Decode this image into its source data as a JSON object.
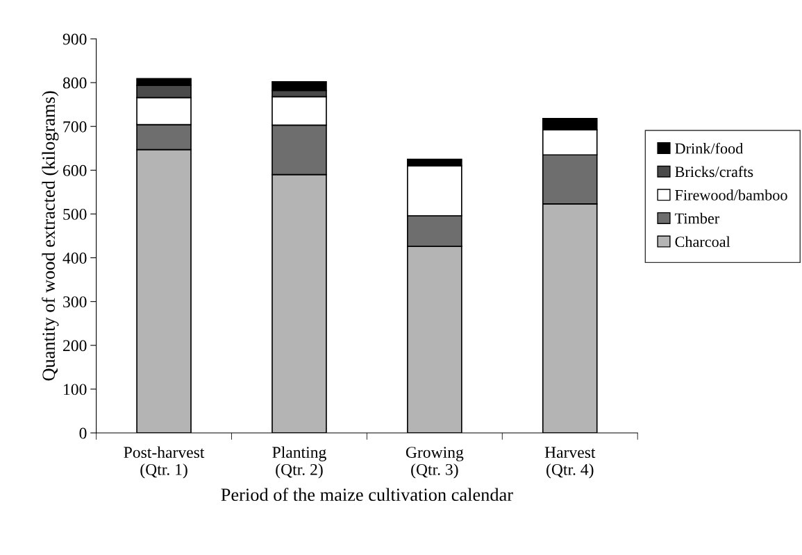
{
  "chart_data": {
    "type": "bar",
    "stacked": true,
    "xlabel": "Period of the maize cultivation calendar",
    "ylabel": "Quantity of wood extracted (kilograms)",
    "categories": [
      "Post-harvest\n(Qtr. 1)",
      "Planting\n(Qtr. 2)",
      "Growing\n(Qtr. 3)",
      "Harvest\n(Qtr. 4)"
    ],
    "series": [
      {
        "name": "Charcoal",
        "color": "#b4b4b4",
        "values": [
          647,
          590,
          426,
          523
        ]
      },
      {
        "name": "Timber",
        "color": "#6e6e6e",
        "values": [
          57,
          113,
          70,
          112
        ]
      },
      {
        "name": "Firewood/bamboo",
        "color": "#ffffff",
        "values": [
          62,
          65,
          114,
          57
        ]
      },
      {
        "name": "Bricks/crafts",
        "color": "#4a4a4a",
        "values": [
          28,
          14,
          0,
          0
        ]
      },
      {
        "name": "Drink/food",
        "color": "#000000",
        "values": [
          15,
          20,
          15,
          26
        ]
      }
    ],
    "ylim": [
      0,
      900
    ],
    "yticks": [
      0,
      100,
      200,
      300,
      400,
      500,
      600,
      700,
      800,
      900
    ],
    "grid": false,
    "legend": "right"
  }
}
